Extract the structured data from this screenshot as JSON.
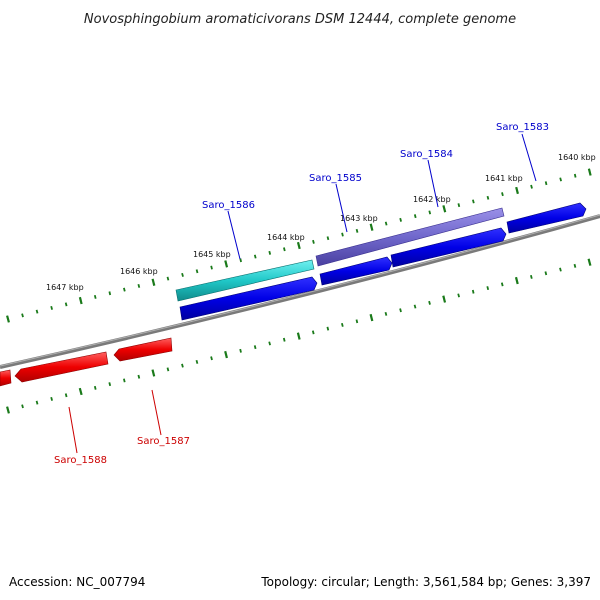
{
  "title": "Novosphingobium aromaticivorans DSM 12444, complete genome",
  "footer": {
    "accession": "Accession: NC_007794",
    "summary": "Topology: circular; Length: 3,561,584 bp; Genes: 3,397"
  },
  "colors": {
    "backbone": "#808080",
    "tick": "#1a7a1a",
    "forward_label": "#0000cc",
    "reverse_label": "#cc0000"
  },
  "kbp_ticks": [
    "1640 kbp",
    "1641 kbp",
    "1642 kbp",
    "1643 kbp",
    "1644 kbp",
    "1645 kbp",
    "1646 kbp",
    "1647 kbp"
  ],
  "genes": [
    {
      "label": "Saro_1583",
      "strand": "forward",
      "color": "#0000cc"
    },
    {
      "label": "Saro_1584",
      "strand": "forward",
      "color": "#0000cc"
    },
    {
      "label": "Saro_1585",
      "strand": "forward",
      "color": "#0000cc"
    },
    {
      "label": "Saro_1586",
      "strand": "forward",
      "color": "#0000cc"
    },
    {
      "label": "Saro_1587",
      "strand": "reverse",
      "color": "#cc0000"
    },
    {
      "label": "Saro_1588",
      "strand": "reverse",
      "color": "#cc0000"
    }
  ]
}
